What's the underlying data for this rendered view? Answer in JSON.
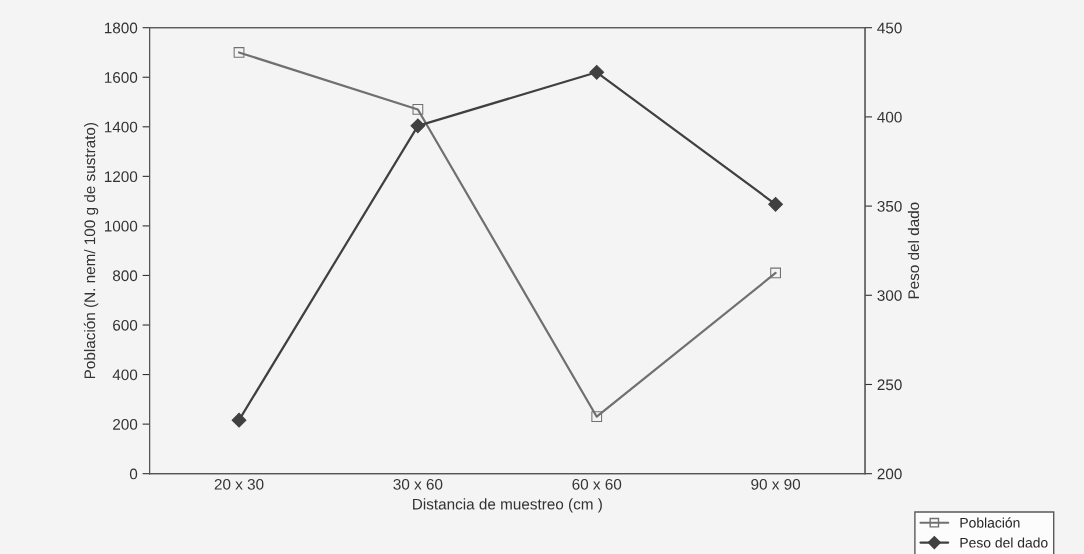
{
  "chart_data": {
    "type": "line",
    "xlabel": "Distancia de muestreo (cm )",
    "ylabel": "Población (N. nem/ 100 g de sustrato)",
    "y2label": "Peso del dado",
    "categories": [
      "20 x 30",
      "30 x 60",
      "60 x 60",
      "90 x 90"
    ],
    "series": [
      {
        "name": "Población",
        "color": "#707070",
        "marker": "square",
        "values": [
          1700,
          1470,
          230,
          810
        ]
      },
      {
        "name": "Peso del dado",
        "color": "#404040",
        "marker": "diamond",
        "axis": "y2",
        "values": [
          230,
          395,
          425,
          351
        ]
      }
    ],
    "ylim": [
      0,
      1800
    ],
    "yticks": [
      0,
      200,
      400,
      600,
      800,
      1000,
      1200,
      1400,
      1600,
      1800
    ],
    "y2lim": [
      200,
      450
    ],
    "y2ticks": [
      200,
      250,
      300,
      350,
      400,
      450
    ],
    "grid": false,
    "legend": "bottom right"
  }
}
